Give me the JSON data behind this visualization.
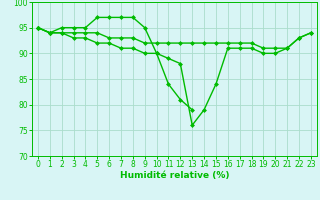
{
  "x": [
    0,
    1,
    2,
    3,
    4,
    5,
    6,
    7,
    8,
    9,
    10,
    11,
    12,
    13,
    14,
    15,
    16,
    17,
    18,
    19,
    20,
    21,
    22,
    23
  ],
  "line1_x": [
    0,
    1,
    2,
    3,
    4,
    5,
    6,
    7,
    8,
    9,
    10,
    11,
    12,
    13
  ],
  "line1_y": [
    95,
    94,
    95,
    95,
    95,
    97,
    97,
    97,
    97,
    95,
    90,
    84,
    81,
    79
  ],
  "line2": [
    95,
    94,
    94,
    94,
    94,
    94,
    93,
    93,
    93,
    92,
    92,
    92,
    92,
    92,
    92,
    92,
    92,
    92,
    92,
    91,
    91,
    91,
    93,
    94
  ],
  "line3": [
    95,
    94,
    94,
    93,
    93,
    92,
    92,
    91,
    91,
    90,
    90,
    89,
    88,
    76,
    79,
    84,
    91,
    91,
    91,
    90,
    90,
    91,
    93,
    94
  ],
  "xlabel": "Humidité relative (%)",
  "ylim": [
    70,
    100
  ],
  "xlim": [
    -0.5,
    23.5
  ],
  "yticks": [
    70,
    75,
    80,
    85,
    90,
    95,
    100
  ],
  "xticks": [
    0,
    1,
    2,
    3,
    4,
    5,
    6,
    7,
    8,
    9,
    10,
    11,
    12,
    13,
    14,
    15,
    16,
    17,
    18,
    19,
    20,
    21,
    22,
    23
  ],
  "line_color": "#00bb00",
  "bg_color": "#d8f5f5",
  "grid_color": "#aaddcc",
  "markersize": 2.5,
  "linewidth": 1.0,
  "xlabel_fontsize": 6.5,
  "tick_fontsize": 5.5
}
